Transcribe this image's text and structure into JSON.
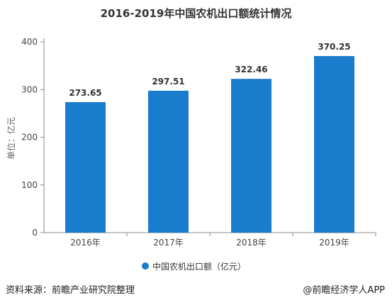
{
  "title": "2016-2019年中国农机出口额统计情况",
  "footer": {
    "source": "资料来源：前瞻产业研究院整理",
    "credit": "@前瞻经济学人APP"
  },
  "colors": {
    "bar": "#1a7ccc",
    "axis": "#888888",
    "legend_marker": "#1a7ccc"
  },
  "chart_data": {
    "type": "bar",
    "categories": [
      "2016年",
      "2017年",
      "2018年",
      "2019年"
    ],
    "series": [
      {
        "name": "中国农机出口额（亿元）",
        "values": [
          273.65,
          297.51,
          322.46,
          370.25
        ]
      }
    ],
    "data_labels": [
      "273.65",
      "297.51",
      "322.46",
      "370.25"
    ],
    "ylabel": "单位：亿元",
    "ylim": [
      0,
      400
    ],
    "yticks": [
      0,
      100,
      200,
      300,
      400
    ],
    "grid": false,
    "legend_position": "bottom"
  }
}
